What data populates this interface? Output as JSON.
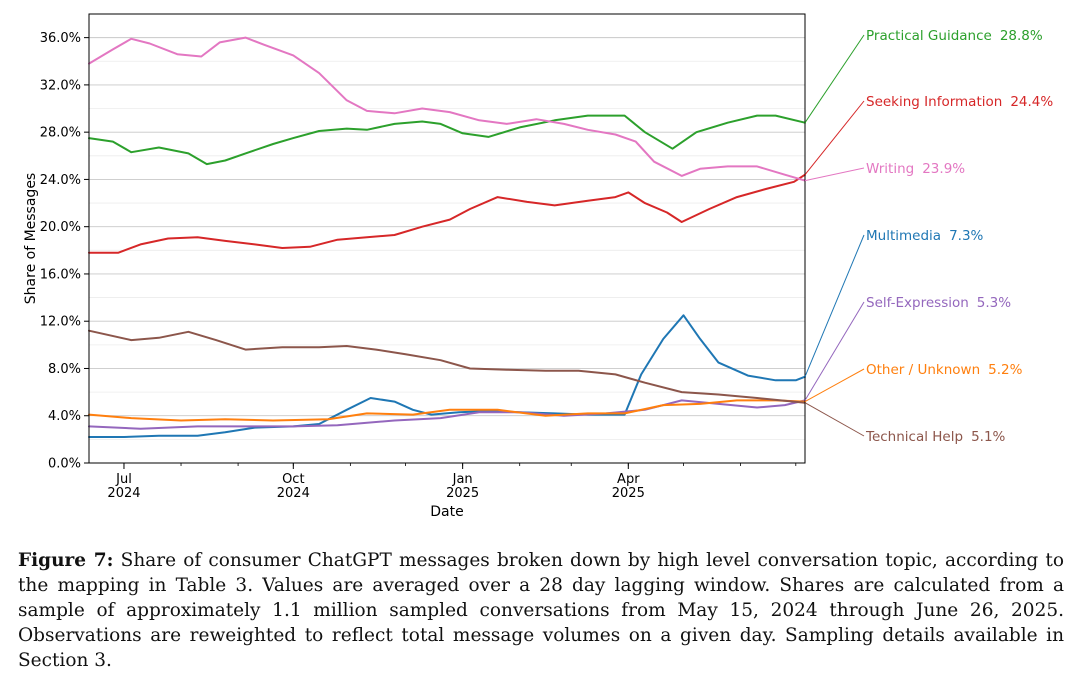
{
  "caption": {
    "label": "Figure 7:",
    "text": "Share of consumer ChatGPT messages broken down by high level conversation topic, according to the mapping in Table 3. Values are averaged over a 28 day lagging window. Shares are calculated from a sample of approximately 1.1 million sampled conversations from May 15, 2024 through June 26, 2025. Observations are reweighted to reflect total message volumes on a given day. Sampling details available in Section 3."
  },
  "chart_data": {
    "type": "line",
    "title": "",
    "xlabel": "Date",
    "ylabel": "Share of Messages",
    "xlim": [
      "2024-06-12",
      "2025-07-06"
    ],
    "ylim": [
      0,
      0.38
    ],
    "y_ticks": [
      0,
      0.04,
      0.08,
      0.12,
      0.16,
      0.2,
      0.24,
      0.28,
      0.32,
      0.36
    ],
    "y_tick_labels": [
      "0.0%",
      "4.0%",
      "8.0%",
      "12.0%",
      "16.0%",
      "20.0%",
      "24.0%",
      "28.0%",
      "32.0%",
      "36.0%"
    ],
    "x_ticks": [
      {
        "date": "2024-07-01",
        "label1": "Jul",
        "label2": "2024"
      },
      {
        "date": "2024-10-01",
        "label1": "Oct",
        "label2": "2024"
      },
      {
        "date": "2025-01-01",
        "label1": "Jan",
        "label2": "2025"
      },
      {
        "date": "2025-04-01",
        "label1": "Apr",
        "label2": "2025"
      }
    ],
    "grid": "horizontal",
    "legend": "right, labels with leader lines",
    "series": [
      {
        "name": "Practical Guidance",
        "final_label": "28.8%",
        "color": "#2ca02c",
        "points": [
          [
            "2024-06-12",
            0.275
          ],
          [
            "2024-06-25",
            0.272
          ],
          [
            "2024-07-05",
            0.263
          ],
          [
            "2024-07-20",
            0.267
          ],
          [
            "2024-08-05",
            0.262
          ],
          [
            "2024-08-15",
            0.253
          ],
          [
            "2024-08-25",
            0.256
          ],
          [
            "2024-09-05",
            0.262
          ],
          [
            "2024-09-20",
            0.27
          ],
          [
            "2024-10-01",
            0.275
          ],
          [
            "2024-10-15",
            0.281
          ],
          [
            "2024-10-30",
            0.283
          ],
          [
            "2024-11-10",
            0.282
          ],
          [
            "2024-11-25",
            0.287
          ],
          [
            "2024-12-10",
            0.289
          ],
          [
            "2024-12-20",
            0.287
          ],
          [
            "2025-01-01",
            0.279
          ],
          [
            "2025-01-15",
            0.276
          ],
          [
            "2025-02-01",
            0.284
          ],
          [
            "2025-02-20",
            0.29
          ],
          [
            "2025-03-10",
            0.294
          ],
          [
            "2025-03-30",
            0.294
          ],
          [
            "2025-04-10",
            0.28
          ],
          [
            "2025-04-25",
            0.266
          ],
          [
            "2025-05-08",
            0.28
          ],
          [
            "2025-05-25",
            0.288
          ],
          [
            "2025-06-10",
            0.294
          ],
          [
            "2025-06-20",
            0.294
          ],
          [
            "2025-07-06",
            0.288
          ]
        ]
      },
      {
        "name": "Seeking Information",
        "final_label": "24.4%",
        "color": "#d62728",
        "points": [
          [
            "2024-06-12",
            0.178
          ],
          [
            "2024-06-28",
            0.178
          ],
          [
            "2024-07-10",
            0.185
          ],
          [
            "2024-07-25",
            0.19
          ],
          [
            "2024-08-10",
            0.191
          ],
          [
            "2024-08-25",
            0.188
          ],
          [
            "2024-09-10",
            0.185
          ],
          [
            "2024-09-25",
            0.182
          ],
          [
            "2024-10-10",
            0.183
          ],
          [
            "2024-10-25",
            0.189
          ],
          [
            "2024-11-10",
            0.191
          ],
          [
            "2024-11-25",
            0.193
          ],
          [
            "2024-12-10",
            0.2
          ],
          [
            "2024-12-25",
            0.206
          ],
          [
            "2025-01-05",
            0.215
          ],
          [
            "2025-01-20",
            0.225
          ],
          [
            "2025-02-05",
            0.221
          ],
          [
            "2025-02-20",
            0.218
          ],
          [
            "2025-03-10",
            0.222
          ],
          [
            "2025-03-25",
            0.225
          ],
          [
            "2025-04-01",
            0.229
          ],
          [
            "2025-04-10",
            0.22
          ],
          [
            "2025-04-22",
            0.212
          ],
          [
            "2025-04-30",
            0.204
          ],
          [
            "2025-05-15",
            0.215
          ],
          [
            "2025-05-30",
            0.225
          ],
          [
            "2025-06-15",
            0.232
          ],
          [
            "2025-06-30",
            0.238
          ],
          [
            "2025-07-06",
            0.244
          ]
        ]
      },
      {
        "name": "Writing",
        "final_label": "23.9%",
        "color": "#e377c2",
        "points": [
          [
            "2024-06-12",
            0.338
          ],
          [
            "2024-06-25",
            0.35
          ],
          [
            "2024-07-05",
            0.359
          ],
          [
            "2024-07-15",
            0.355
          ],
          [
            "2024-07-30",
            0.346
          ],
          [
            "2024-08-12",
            0.344
          ],
          [
            "2024-08-22",
            0.356
          ],
          [
            "2024-09-05",
            0.36
          ],
          [
            "2024-09-15",
            0.354
          ],
          [
            "2024-10-01",
            0.345
          ],
          [
            "2024-10-15",
            0.33
          ],
          [
            "2024-10-30",
            0.307
          ],
          [
            "2024-11-10",
            0.298
          ],
          [
            "2024-11-25",
            0.296
          ],
          [
            "2024-12-10",
            0.3
          ],
          [
            "2024-12-25",
            0.297
          ],
          [
            "2025-01-10",
            0.29
          ],
          [
            "2025-01-25",
            0.287
          ],
          [
            "2025-02-10",
            0.291
          ],
          [
            "2025-02-25",
            0.287
          ],
          [
            "2025-03-10",
            0.282
          ],
          [
            "2025-03-25",
            0.278
          ],
          [
            "2025-04-05",
            0.272
          ],
          [
            "2025-04-15",
            0.255
          ],
          [
            "2025-04-30",
            0.243
          ],
          [
            "2025-05-10",
            0.249
          ],
          [
            "2025-05-25",
            0.251
          ],
          [
            "2025-06-10",
            0.251
          ],
          [
            "2025-06-25",
            0.244
          ],
          [
            "2025-07-06",
            0.239
          ]
        ]
      },
      {
        "name": "Multimedia",
        "final_label": "7.3%",
        "color": "#1f77b4",
        "points": [
          [
            "2024-06-12",
            0.022
          ],
          [
            "2024-07-01",
            0.022
          ],
          [
            "2024-07-20",
            0.023
          ],
          [
            "2024-08-10",
            0.023
          ],
          [
            "2024-08-25",
            0.026
          ],
          [
            "2024-09-10",
            0.03
          ],
          [
            "2024-10-01",
            0.031
          ],
          [
            "2024-10-15",
            0.033
          ],
          [
            "2024-10-30",
            0.045
          ],
          [
            "2024-11-12",
            0.055
          ],
          [
            "2024-11-25",
            0.052
          ],
          [
            "2024-12-05",
            0.045
          ],
          [
            "2024-12-15",
            0.041
          ],
          [
            "2024-12-30",
            0.043
          ],
          [
            "2025-01-15",
            0.044
          ],
          [
            "2025-02-01",
            0.043
          ],
          [
            "2025-02-20",
            0.042
          ],
          [
            "2025-03-10",
            0.041
          ],
          [
            "2025-03-30",
            0.041
          ],
          [
            "2025-04-08",
            0.075
          ],
          [
            "2025-04-20",
            0.105
          ],
          [
            "2025-05-01",
            0.125
          ],
          [
            "2025-05-10",
            0.105
          ],
          [
            "2025-05-20",
            0.085
          ],
          [
            "2025-06-05",
            0.074
          ],
          [
            "2025-06-20",
            0.07
          ],
          [
            "2025-07-01",
            0.07
          ],
          [
            "2025-07-06",
            0.073
          ]
        ]
      },
      {
        "name": "Self-Expression",
        "final_label": "5.3%",
        "color": "#9467bd",
        "points": [
          [
            "2024-06-12",
            0.031
          ],
          [
            "2024-07-10",
            0.029
          ],
          [
            "2024-08-10",
            0.031
          ],
          [
            "2024-09-10",
            0.031
          ],
          [
            "2024-10-01",
            0.031
          ],
          [
            "2024-10-25",
            0.032
          ],
          [
            "2024-11-25",
            0.036
          ],
          [
            "2024-12-20",
            0.038
          ],
          [
            "2025-01-10",
            0.043
          ],
          [
            "2025-02-01",
            0.043
          ],
          [
            "2025-02-25",
            0.04
          ],
          [
            "2025-03-20",
            0.042
          ],
          [
            "2025-04-10",
            0.045
          ],
          [
            "2025-04-30",
            0.053
          ],
          [
            "2025-05-20",
            0.05
          ],
          [
            "2025-06-10",
            0.047
          ],
          [
            "2025-06-25",
            0.049
          ],
          [
            "2025-07-06",
            0.053
          ]
        ]
      },
      {
        "name": "Other / Unknown",
        "final_label": "5.2%",
        "color": "#ff7f0e",
        "points": [
          [
            "2024-06-12",
            0.041
          ],
          [
            "2024-07-05",
            0.038
          ],
          [
            "2024-08-01",
            0.036
          ],
          [
            "2024-08-25",
            0.037
          ],
          [
            "2024-09-20",
            0.036
          ],
          [
            "2024-10-20",
            0.037
          ],
          [
            "2024-11-10",
            0.042
          ],
          [
            "2024-12-05",
            0.041
          ],
          [
            "2024-12-25",
            0.045
          ],
          [
            "2025-01-20",
            0.045
          ],
          [
            "2025-02-15",
            0.04
          ],
          [
            "2025-03-10",
            0.042
          ],
          [
            "2025-03-30",
            0.042
          ],
          [
            "2025-04-20",
            0.049
          ],
          [
            "2025-05-10",
            0.05
          ],
          [
            "2025-05-30",
            0.053
          ],
          [
            "2025-06-20",
            0.053
          ],
          [
            "2025-07-06",
            0.052
          ]
        ]
      },
      {
        "name": "Technical Help",
        "final_label": "5.1%",
        "color": "#8c564b",
        "points": [
          [
            "2024-06-12",
            0.112
          ],
          [
            "2024-07-05",
            0.104
          ],
          [
            "2024-07-20",
            0.106
          ],
          [
            "2024-08-05",
            0.111
          ],
          [
            "2024-08-20",
            0.104
          ],
          [
            "2024-09-05",
            0.096
          ],
          [
            "2024-09-25",
            0.098
          ],
          [
            "2024-10-15",
            0.098
          ],
          [
            "2024-10-30",
            0.099
          ],
          [
            "2024-11-15",
            0.096
          ],
          [
            "2024-12-01",
            0.092
          ],
          [
            "2024-12-20",
            0.087
          ],
          [
            "2025-01-05",
            0.08
          ],
          [
            "2025-01-25",
            0.079
          ],
          [
            "2025-02-15",
            0.078
          ],
          [
            "2025-03-05",
            0.078
          ],
          [
            "2025-03-25",
            0.075
          ],
          [
            "2025-04-10",
            0.068
          ],
          [
            "2025-04-30",
            0.06
          ],
          [
            "2025-05-20",
            0.058
          ],
          [
            "2025-06-10",
            0.055
          ],
          [
            "2025-07-06",
            0.051
          ]
        ]
      }
    ]
  }
}
